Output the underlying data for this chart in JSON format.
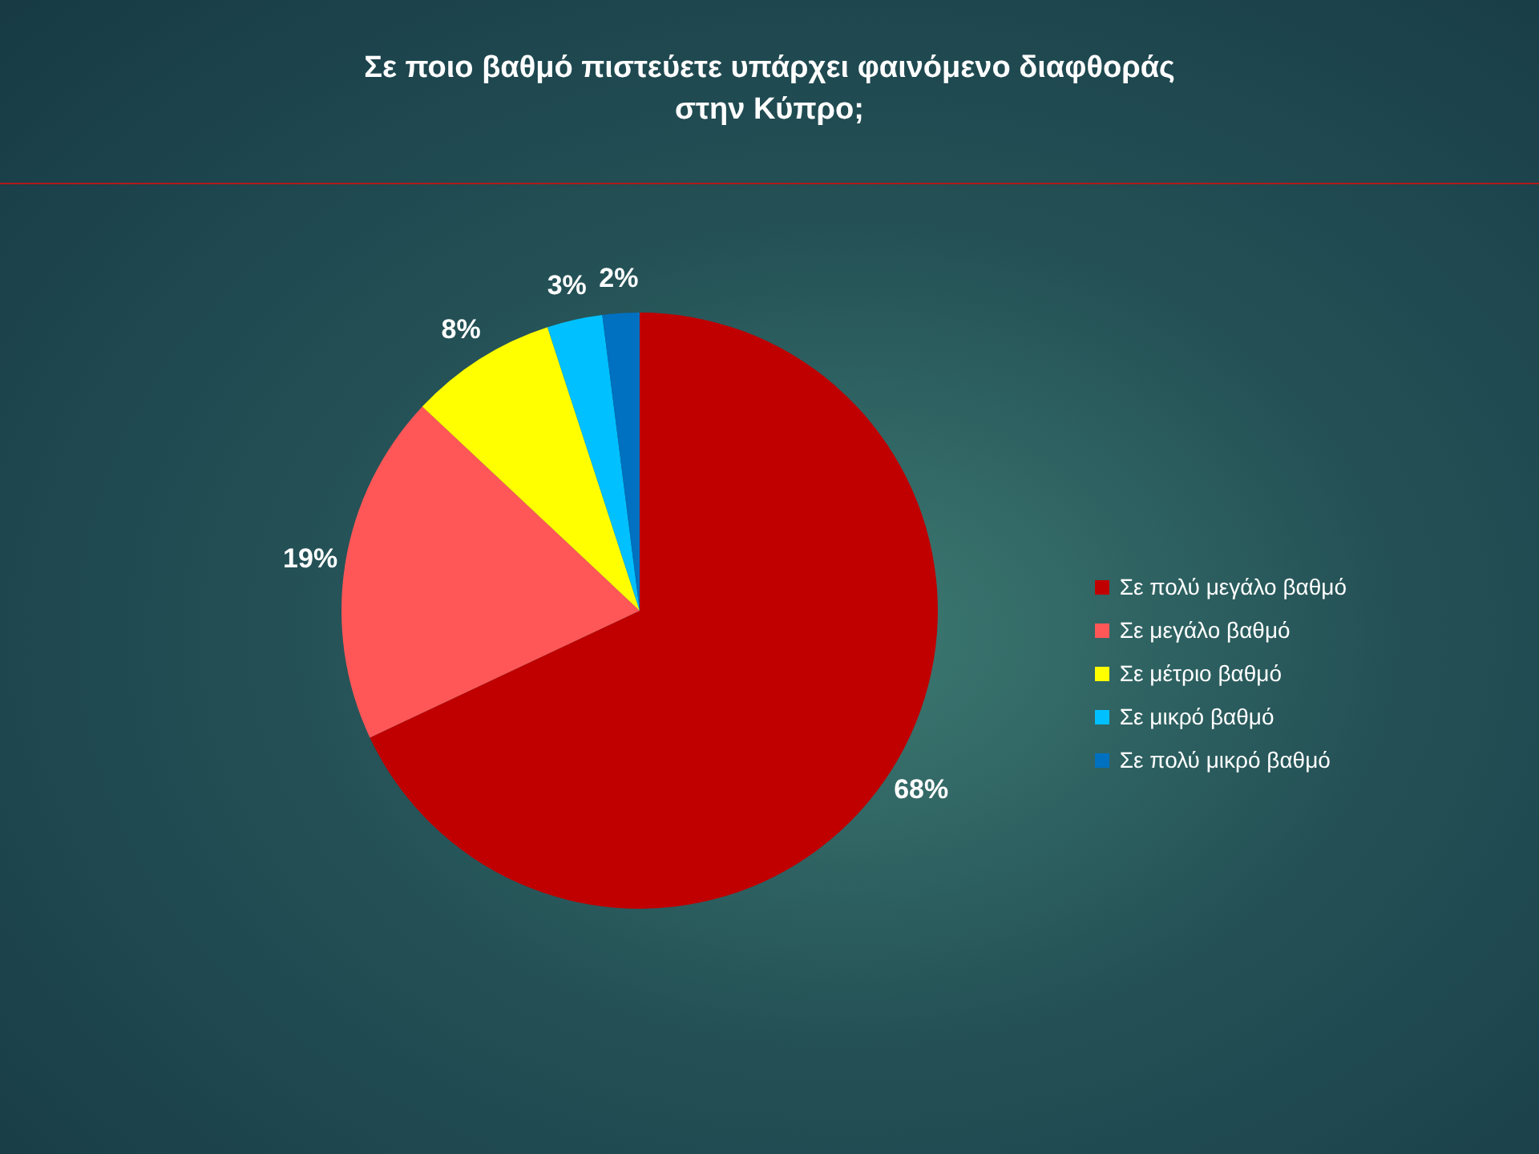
{
  "chart_data": {
    "type": "pie",
    "title": "Σε ποιο βαθμό πιστεύετε υπάρχει φαινόμενο διαφθοράς στην Κύπρο;",
    "categories": [
      "Σε πολύ μεγάλο βαθμό",
      "Σε μεγάλο βαθμό",
      "Σε μέτριο βαθμό",
      "Σε μικρό βαθμό",
      "Σε πολύ μικρό βαθμό"
    ],
    "values": [
      68,
      19,
      8,
      3,
      2
    ],
    "colors": [
      "#c00000",
      "#ff5757",
      "#ffff00",
      "#00c0ff",
      "#0070c0"
    ],
    "value_labels": [
      "68%",
      "19%",
      "8%",
      "3%",
      "2%"
    ],
    "legend": "right"
  }
}
